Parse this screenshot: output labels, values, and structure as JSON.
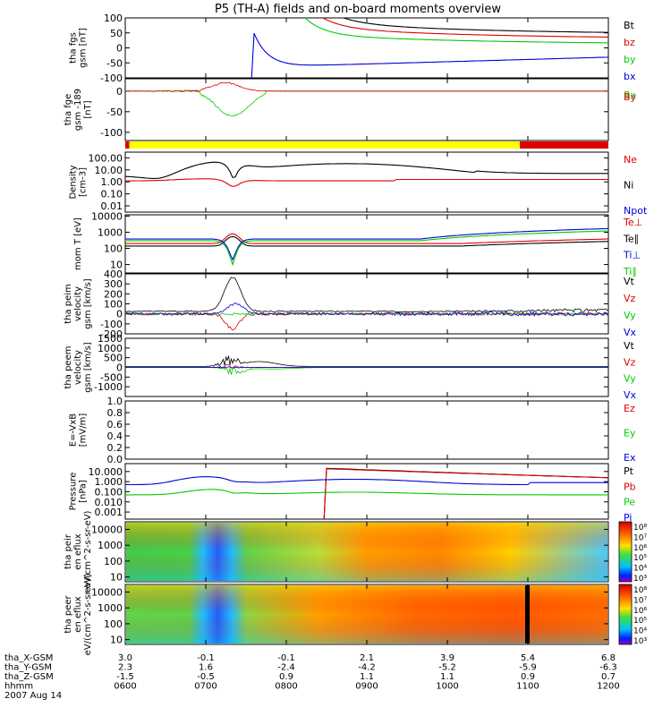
{
  "title": "P5 (TH-A) fields and on-board moments overview",
  "colors": {
    "black": "#000000",
    "red": "#e00000",
    "green": "#00cc00",
    "blue": "#0000dd",
    "yellow": "#ffff00"
  },
  "chart_data": [
    {
      "type": "line",
      "panel": "fgs",
      "ylabel": "tha fgs gsm [nT]",
      "ylim": [
        -100,
        100
      ],
      "yticks": [
        "100",
        "50",
        "0",
        "-50",
        "-100"
      ],
      "series": [
        {
          "name": "Bt",
          "color": "black"
        },
        {
          "name": "bz",
          "color": "red"
        },
        {
          "name": "by",
          "color": "green"
        },
        {
          "name": "bx",
          "color": "blue"
        }
      ]
    },
    {
      "type": "line",
      "panel": "fge",
      "ylabel": "tha fge gsm -189 [nT]",
      "ylim": [
        -120,
        30
      ],
      "yticks": [
        "0",
        "-50",
        "-100"
      ],
      "series": [
        {
          "name": "Bx",
          "color": "green"
        },
        {
          "name": "By",
          "color": "red"
        }
      ]
    },
    {
      "type": "bar",
      "panel": "mode",
      "segments": [
        {
          "from": "0600",
          "to": "0603",
          "color": "red"
        },
        {
          "from": "0603",
          "to": "1054",
          "color": "yellow"
        },
        {
          "from": "1054",
          "to": "1200",
          "color": "red"
        }
      ]
    },
    {
      "type": "line",
      "panel": "density",
      "ylabel": "Density [cm-3]",
      "yscale": "log",
      "ylim": [
        0.003,
        300
      ],
      "yticks": [
        "100.00",
        "10.00",
        "1.00",
        "0.10",
        "0.01"
      ],
      "series": [
        {
          "name": "Ne",
          "color": "red"
        },
        {
          "name": "Ni",
          "color": "black"
        },
        {
          "name": "Npot",
          "color": "blue"
        }
      ]
    },
    {
      "type": "line",
      "panel": "temperature",
      "ylabel": "mom T [eV]",
      "yscale": "log",
      "ylim": [
        3,
        12000
      ],
      "yticks": [
        "10000",
        "1000",
        "100",
        "10"
      ],
      "series": [
        {
          "name": "Te⊥",
          "color": "red"
        },
        {
          "name": "Te∥",
          "color": "black"
        },
        {
          "name": "Ti⊥",
          "color": "blue"
        },
        {
          "name": "Ti∥",
          "color": "green"
        }
      ]
    },
    {
      "type": "line",
      "panel": "peim",
      "ylabel": "tha peim velocity gsm [km/s]",
      "ylim": [
        -200,
        400
      ],
      "yticks": [
        "400",
        "300",
        "200",
        "100",
        "0",
        "-100",
        "-200"
      ],
      "series": [
        {
          "name": "Vt",
          "color": "black"
        },
        {
          "name": "Vz",
          "color": "red"
        },
        {
          "name": "Vy",
          "color": "green"
        },
        {
          "name": "Vx",
          "color": "blue"
        }
      ]
    },
    {
      "type": "line",
      "panel": "peem",
      "ylabel": "tha peem velocity gsm [km/s]",
      "ylim": [
        -1500,
        1500
      ],
      "yticks": [
        "1500",
        "1000",
        "500",
        "0",
        "-500",
        "-1000"
      ],
      "series": [
        {
          "name": "Vt",
          "color": "black"
        },
        {
          "name": "Vz",
          "color": "red"
        },
        {
          "name": "Vy",
          "color": "green"
        },
        {
          "name": "Vx",
          "color": "blue"
        }
      ]
    },
    {
      "type": "line",
      "panel": "efield",
      "ylabel": "E=-VxB [mV/m]",
      "ylim": [
        0,
        1
      ],
      "yticks": [
        "1.0",
        "0.8",
        "0.6",
        "0.4",
        "0.2",
        "0.0"
      ],
      "series": [
        {
          "name": "Ez",
          "color": "red"
        },
        {
          "name": "Ey",
          "color": "green"
        },
        {
          "name": "Ex",
          "color": "blue"
        }
      ]
    },
    {
      "type": "line",
      "panel": "pressure",
      "ylabel": "Pressure [nPa]",
      "yscale": "log",
      "ylim": [
        0.0002,
        60
      ],
      "yticks": [
        "10.000",
        "1.000",
        "0.100",
        "0.010",
        "0.001"
      ],
      "series": [
        {
          "name": "Pt",
          "color": "black"
        },
        {
          "name": "Pb",
          "color": "red"
        },
        {
          "name": "Pe",
          "color": "green"
        },
        {
          "name": "Pi",
          "color": "blue"
        }
      ]
    },
    {
      "type": "heatmap",
      "panel": "peir",
      "ylabel": "tha peir en eflux eV/(cm^2-s-sr-eV)",
      "yscale": "log",
      "ylim": [
        5,
        30000
      ],
      "yticks": [
        "10000",
        "1000",
        "100",
        "10"
      ],
      "colorbar": {
        "labels": [
          "10⁸",
          "10⁷",
          "10⁶",
          "10⁵",
          "10⁴",
          "10³"
        ]
      }
    },
    {
      "type": "heatmap",
      "panel": "peer",
      "ylabel": "tha peer en eflux eV/(cm^2-s-sr-eV)",
      "yscale": "log",
      "ylim": [
        5,
        30000
      ],
      "yticks": [
        "10000",
        "1000",
        "100",
        "10"
      ],
      "colorbar": {
        "labels": [
          "10⁸",
          "10⁷",
          "10⁶",
          "10⁵",
          "10⁴",
          "10³"
        ]
      }
    }
  ],
  "xaxis": {
    "rows": [
      {
        "label": "tha_X-GSM",
        "values": [
          "3.0",
          "-0.1",
          "-0.1",
          "2.1",
          "3.9",
          "5.4",
          "6.8"
        ]
      },
      {
        "label": "tha_Y-GSM",
        "values": [
          "2.3",
          "1.6",
          "-2.4",
          "-4.2",
          "-5.2",
          "-5.9",
          "-6.3"
        ]
      },
      {
        "label": "tha_Z-GSM",
        "values": [
          "-1.5",
          "-0.5",
          "0.9",
          "1.1",
          "1.1",
          "0.9",
          "0.7"
        ]
      },
      {
        "label": "hhmm",
        "values": [
          "0600",
          "0700",
          "0800",
          "0900",
          "1000",
          "1100",
          "1200"
        ]
      }
    ],
    "date": "2007 Aug 14"
  }
}
